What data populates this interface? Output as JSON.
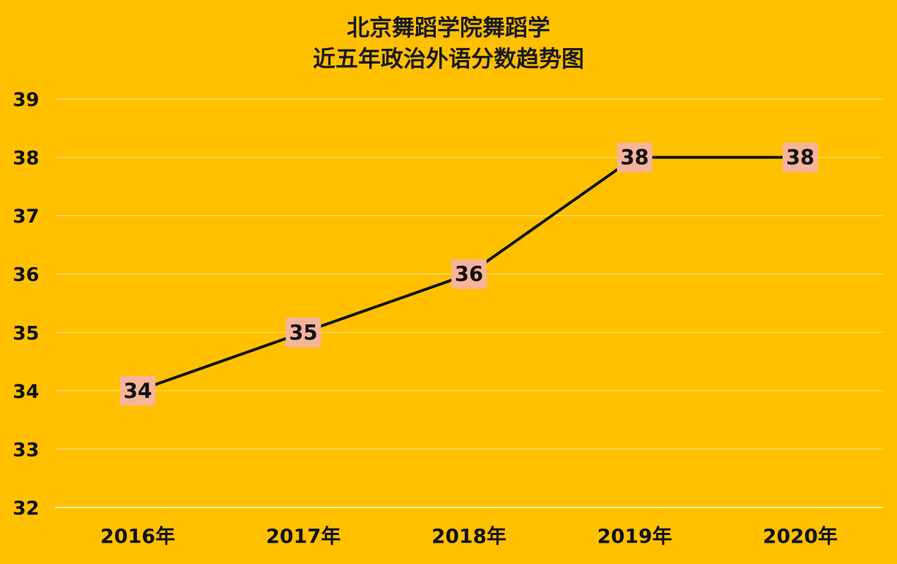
{
  "chart_data": {
    "type": "line",
    "title_lines": [
      "北京舞蹈学院舞蹈学",
      "近五年政治外语分数趋势图"
    ],
    "categories": [
      "2016年",
      "2017年",
      "2018年",
      "2019年",
      "2020年"
    ],
    "values": [
      34,
      35,
      36,
      38,
      38
    ],
    "data_labels": [
      "34",
      "35",
      "36",
      "38",
      "38"
    ],
    "ylim": [
      32,
      39
    ],
    "yticks": [
      "32",
      "33",
      "34",
      "35",
      "36",
      "37",
      "38",
      "39"
    ],
    "grid": true,
    "legend": "none",
    "colors": {
      "background": "#ffc000",
      "line": "#111111",
      "label_box": "#f6b49b",
      "gridline": "#ffd866",
      "axis": "#fff2b3"
    }
  }
}
